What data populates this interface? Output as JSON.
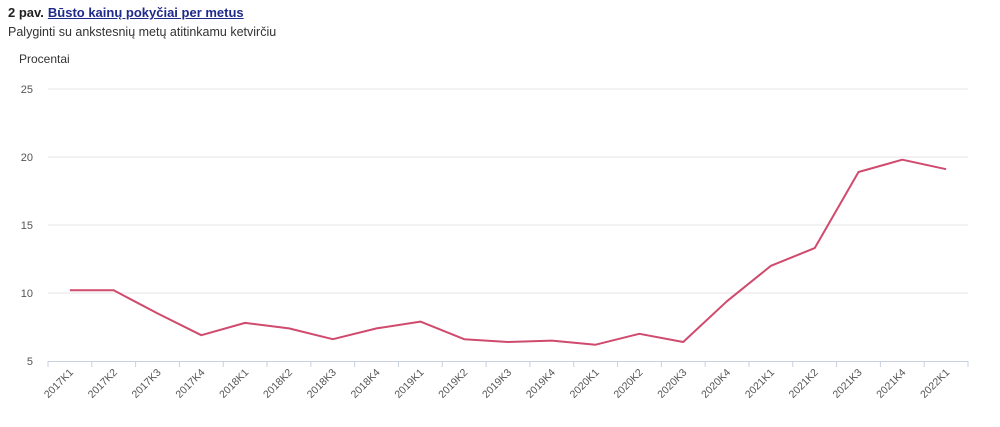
{
  "header": {
    "figure_prefix": "2 pav.",
    "title_link": "Būsto kainų pokyčiai per metus",
    "subtitle": "Palyginti su ankstesnių metų atitinkamu ketvirčiu"
  },
  "chart_data": {
    "type": "line",
    "title": "Būsto kainų pokyčiai per metus",
    "subtitle": "Palyginti su ankstesnių metų atitinkamu ketvirčiu",
    "ylabel": "Procentai",
    "xlabel": "",
    "ylim": [
      5,
      25
    ],
    "yticks": [
      5,
      10,
      15,
      20,
      25
    ],
    "grid": true,
    "legend": "none",
    "categories": [
      "2017K1",
      "2017K2",
      "2017K3",
      "2017K4",
      "2018K1",
      "2018K2",
      "2018K3",
      "2018K4",
      "2019K1",
      "2019K2",
      "2019K3",
      "2019K4",
      "2020K1",
      "2020K2",
      "2020K3",
      "2020K4",
      "2021K1",
      "2021K2",
      "2021K3",
      "2021K4",
      "2022K1"
    ],
    "series": [
      {
        "color": "#d04a6e",
        "values": [
          10.2,
          10.2,
          8.5,
          6.9,
          7.8,
          7.4,
          6.6,
          7.4,
          7.9,
          6.6,
          6.4,
          6.5,
          6.2,
          7.0,
          6.4,
          9.4,
          12.0,
          13.3,
          18.9,
          19.8,
          19.1
        ]
      }
    ]
  }
}
